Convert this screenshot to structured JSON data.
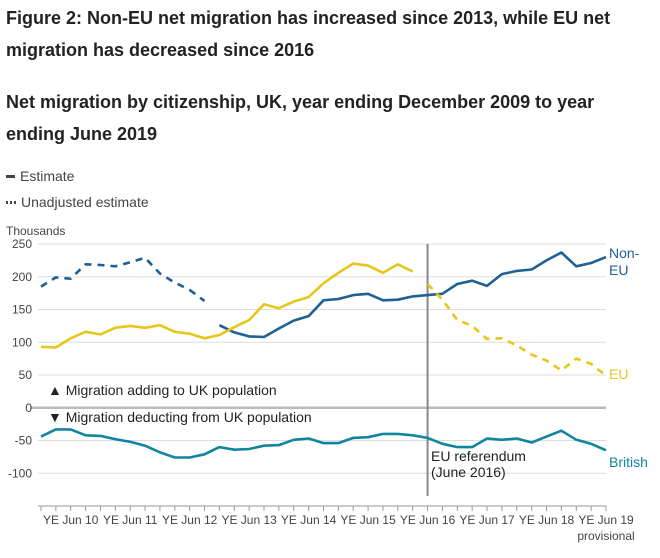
{
  "figure_title": "Figure 2: Non-EU net migration has increased since 2013, while EU net migration has decreased since 2016",
  "chart_data": {
    "type": "line",
    "title": "Net migration by citizenship, UK, year ending December 2009 to year ending June 2019",
    "ylabel": "Thousands",
    "ylim": [
      -150,
      250
    ],
    "yticks": [
      250,
      200,
      150,
      100,
      50,
      0,
      -50,
      -100
    ],
    "x_range": [
      2009.95,
      2019.5
    ],
    "xticks": [
      {
        "label": "YE Jun 10",
        "x": 2010.5
      },
      {
        "label": "YE Jun 11",
        "x": 2011.5
      },
      {
        "label": "YE Jun 12",
        "x": 2012.5
      },
      {
        "label": "YE Jun 13",
        "x": 2013.5
      },
      {
        "label": "YE Jun 14",
        "x": 2014.5
      },
      {
        "label": "YE Jun 15",
        "x": 2015.5
      },
      {
        "label": "YE Jun 16",
        "x": 2016.5
      },
      {
        "label": "YE Jun 17",
        "x": 2017.5
      },
      {
        "label": "YE Jun 18",
        "x": 2018.5
      },
      {
        "label": "YE Jun 19",
        "x": 2019.5
      }
    ],
    "xtick_sublabel": "provisional",
    "legend": {
      "estimate": "Estimate",
      "unadjusted": "Unadjusted estimate"
    },
    "series": [
      {
        "name": "Non-EU unadjusted estimate",
        "style": "dashed",
        "color": "#206095",
        "x": [
          2010.0,
          2010.25,
          2010.5,
          2010.75,
          2011.0,
          2011.25,
          2011.5,
          2011.75,
          2012.0,
          2012.25,
          2012.5
        ],
        "values": [
          185,
          199,
          197,
          219,
          218,
          216,
          222,
          229,
          205,
          191,
          180
        ]
      },
      {
        "name": "Non-EU unadjusted estimate (tail)",
        "style": "dashed",
        "color": "#206095",
        "x": [
          2012.5,
          2012.75
        ],
        "values": [
          180,
          163
        ]
      },
      {
        "name": "Non-EU",
        "label": "Non-EU",
        "style": "solid",
        "color": "#206095",
        "x": [
          2013.0,
          2013.25,
          2013.5,
          2013.75,
          2014.0,
          2014.25,
          2014.5,
          2014.75,
          2015.0,
          2015.25,
          2015.5,
          2015.75,
          2016.0,
          2016.25,
          2016.5,
          2016.75,
          2017.0,
          2017.25,
          2017.5,
          2017.75,
          2018.0,
          2018.25,
          2018.5,
          2018.75,
          2019.0,
          2019.25,
          2019.5
        ],
        "values": [
          126,
          115,
          109,
          108,
          121,
          133,
          140,
          164,
          166,
          172,
          174,
          164,
          165,
          170,
          172,
          174,
          189,
          194,
          186,
          204,
          209,
          211,
          225,
          237,
          216,
          221,
          230
        ]
      },
      {
        "name": "EU",
        "label": "EU",
        "style": "solid",
        "color": "#e6c619",
        "x": [
          2010.0,
          2010.25,
          2010.5,
          2010.75,
          2011.0,
          2011.25,
          2011.5,
          2011.75,
          2012.0,
          2012.25,
          2012.5,
          2012.75,
          2013.0,
          2013.25,
          2013.5,
          2013.75,
          2014.0,
          2014.25,
          2014.5,
          2014.75,
          2015.0,
          2015.25,
          2015.5,
          2015.75,
          2016.0,
          2016.25
        ],
        "values": [
          93,
          92,
          106,
          116,
          112,
          122,
          125,
          122,
          126,
          116,
          113,
          106,
          111,
          123,
          134,
          158,
          152,
          162,
          169,
          190,
          206,
          220,
          217,
          206,
          219,
          208
        ]
      },
      {
        "name": "EU (dashed)",
        "style": "dashed",
        "color": "#e6c619",
        "x": [
          2016.5,
          2016.75,
          2017.0,
          2017.25,
          2017.5,
          2017.75,
          2018.0,
          2018.25,
          2018.5,
          2018.75,
          2019.0,
          2019.25,
          2019.5
        ],
        "values": [
          189,
          165,
          134,
          125,
          105,
          106,
          95,
          81,
          72,
          57,
          75,
          67,
          49
        ]
      },
      {
        "name": "British",
        "label": "British",
        "style": "solid",
        "color": "#10869e",
        "x": [
          2010.0,
          2010.25,
          2010.5,
          2010.75,
          2011.0,
          2011.25,
          2011.5,
          2011.75,
          2012.0,
          2012.25,
          2012.5,
          2012.75,
          2013.0,
          2013.25,
          2013.5,
          2013.75,
          2014.0,
          2014.25,
          2014.5,
          2014.75,
          2015.0,
          2015.25,
          2015.5,
          2015.75,
          2016.0,
          2016.25,
          2016.5,
          2016.75,
          2017.0,
          2017.25,
          2017.5,
          2017.75,
          2018.0,
          2018.25,
          2018.5,
          2018.75,
          2019.0,
          2019.25,
          2019.5
        ],
        "values": [
          -44,
          -33,
          -33,
          -42,
          -43,
          -48,
          -52,
          -58,
          -68,
          -76,
          -76,
          -71,
          -60,
          -64,
          -63,
          -58,
          -57,
          -49,
          -47,
          -54,
          -54,
          -46,
          -45,
          -40,
          -40,
          -42,
          -46,
          -55,
          -60,
          -60,
          -47,
          -49,
          -47,
          -53,
          -44,
          -35,
          -49,
          -55,
          -65
        ]
      }
    ],
    "annotations": {
      "referendum_x": 2016.5,
      "referendum_line1": "EU referendum",
      "referendum_line2": "(June 2016)",
      "adding_label": "▲ Migration adding to UK population",
      "deducting_label": "▼ Migration deducting from UK population",
      "nonEU_label_line1": "Non-",
      "nonEU_label_line2": "EU"
    },
    "colors": {
      "non_eu": "#206095",
      "eu": "#e6c619",
      "british": "#10869e",
      "axis": "#bbbbbb",
      "grid": "#dddddd",
      "zero": "#bbbbbb",
      "text": "#444444"
    }
  }
}
